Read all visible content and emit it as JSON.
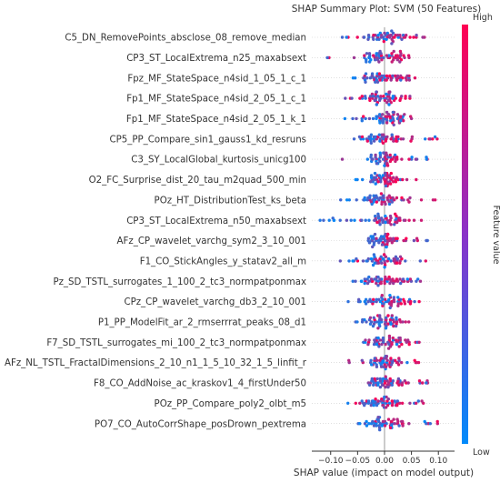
{
  "chart_data": {
    "type": "scatter",
    "title": "SHAP Summary Plot: SVM (50 Features)",
    "xlabel": "SHAP value (impact on model output)",
    "ylabel": "",
    "xlim": [
      -0.135,
      0.13
    ],
    "x_ticks": [
      -0.1,
      -0.05,
      0.0,
      0.05,
      0.1
    ],
    "x_tick_labels": [
      "−0.10",
      "−0.05",
      "0.00",
      "0.05",
      "0.10"
    ],
    "colorbar": {
      "label": "Feature value",
      "high_label": "High",
      "low_label": "Low",
      "high_color": "#ff0052",
      "low_color": "#008bfb"
    },
    "features": [
      {
        "name": "C5_DN_RemovePoints_absclose_08_remove_median",
        "min": -0.08,
        "max": 0.075,
        "core": 0.03
      },
      {
        "name": "CP3_ST_LocalExtrema_n25_maxabsext",
        "min": -0.11,
        "max": 0.055,
        "core": 0.025
      },
      {
        "name": "Fpz_MF_StateSpace_n4sid_1_05_1_c_1",
        "min": -0.07,
        "max": 0.06,
        "core": 0.03
      },
      {
        "name": "Fp1_MF_StateSpace_n4sid_2_05_1_c_1",
        "min": -0.08,
        "max": 0.065,
        "core": 0.03
      },
      {
        "name": "Fp1_MF_StateSpace_n4sid_2_05_1_k_1",
        "min": -0.075,
        "max": 0.05,
        "core": 0.03
      },
      {
        "name": "CP5_PP_Compare_sin1_gauss1_kd_resruns",
        "min": -0.06,
        "max": 0.11,
        "core": 0.03
      },
      {
        "name": "C3_SY_LocalGlobal_kurtosis_unicg100",
        "min": -0.08,
        "max": 0.08,
        "core": 0.025
      },
      {
        "name": "O2_FC_Surprise_dist_20_tau_m2quad_500_min",
        "min": -0.06,
        "max": 0.065,
        "core": 0.025
      },
      {
        "name": "POz_HT_DistributionTest_ks_beta",
        "min": -0.085,
        "max": 0.095,
        "core": 0.025
      },
      {
        "name": "CP3_ST_LocalExtrema_n50_maxabsext",
        "min": -0.12,
        "max": 0.07,
        "core": 0.03
      },
      {
        "name": "AFz_CP_wavelet_varchg_sym2_3_10_001",
        "min": -0.03,
        "max": 0.085,
        "core": 0.02
      },
      {
        "name": "F1_CO_StickAngles_y_statav2_all_m",
        "min": -0.085,
        "max": 0.08,
        "core": 0.025
      },
      {
        "name": "Pz_SD_TSTL_surrogates_1_100_2_tc3_normpatponmax",
        "min": -0.06,
        "max": 0.07,
        "core": 0.03
      },
      {
        "name": "CPz_CP_wavelet_varchg_db3_2_10_001",
        "min": -0.07,
        "max": 0.065,
        "core": 0.03
      },
      {
        "name": "P1_PP_ModelFit_ar_2_rmserrrat_peaks_08_d1",
        "min": -0.08,
        "max": 0.08,
        "core": 0.025
      },
      {
        "name": "F7_SD_TSTL_surrogates_mi_100_2_tc3_normpatponmax",
        "min": -0.055,
        "max": 0.065,
        "core": 0.03
      },
      {
        "name": "AFz_NL_TSTL_FractalDimensions_2_10_n1_1_5_10_32_1_5_linfit_r",
        "min": -0.075,
        "max": 0.075,
        "core": 0.025
      },
      {
        "name": "F8_CO_AddNoise_ac_kraskov1_4_firstUnder50",
        "min": -0.06,
        "max": 0.08,
        "core": 0.025
      },
      {
        "name": "POz_PP_Compare_poly2_olbt_m5",
        "min": -0.07,
        "max": 0.075,
        "core": 0.025
      },
      {
        "name": "PO7_CO_AutoCorrShape_posDrown_pextrema",
        "min": -0.05,
        "max": 0.1,
        "core": 0.025
      }
    ]
  }
}
